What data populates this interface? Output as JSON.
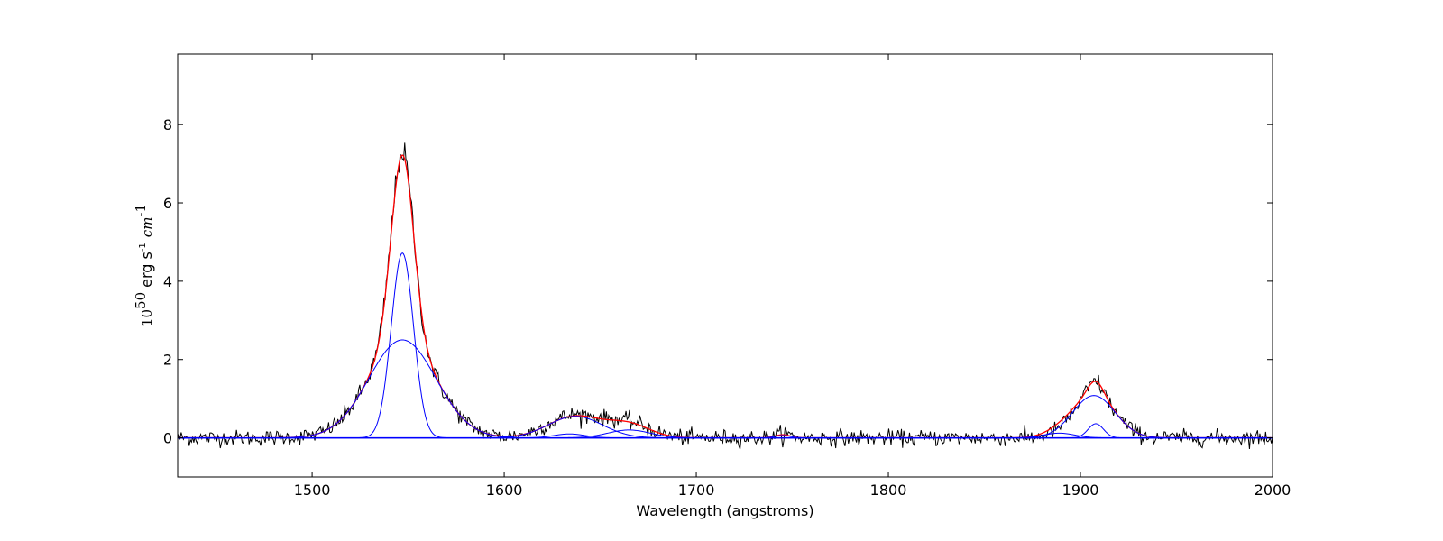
{
  "chart_data": {
    "type": "line",
    "title": "",
    "xlabel": "Wavelength (angstroms)",
    "ylabel": {
      "base": "10",
      "exponent": "50",
      "unit": "erg s",
      "unit_exponent": "-1",
      "unit2": "cm",
      "unit2_exponent": "-1"
    },
    "xlim": [
      1430,
      2000
    ],
    "ylim": [
      -1,
      9.8
    ],
    "xticks": [
      1500,
      1600,
      1700,
      1800,
      1900,
      2000
    ],
    "yticks": [
      0,
      2,
      4,
      6,
      8
    ],
    "grid": false,
    "legend": "none",
    "series": [
      {
        "role": "observed spectrum",
        "color": "#000000",
        "width": 1,
        "continuum": 0,
        "x_range": [
          1430,
          2000
        ],
        "step": 0.6,
        "noise": 0.1,
        "components": [
          {
            "center": 1547,
            "amp": 4.8,
            "sigma": 5.8
          },
          {
            "center": 1547,
            "amp": 2.5,
            "sigma": 17.5
          },
          {
            "center": 1637,
            "amp": 0.58,
            "sigma": 14
          },
          {
            "center": 1665,
            "amp": 0.35,
            "sigma": 11
          },
          {
            "center": 1907,
            "amp": 1.08,
            "sigma": 11
          },
          {
            "center": 1908,
            "amp": 0.36,
            "sigma": 4
          },
          {
            "center": 1745,
            "amp": 0.1,
            "sigma": 4
          }
        ]
      },
      {
        "role": "total fit",
        "color": "#ff0000",
        "width": 1.3,
        "continuum": 0,
        "x_range": [
          1430,
          2000
        ],
        "step": 0.5,
        "components": [
          {
            "center": 1547,
            "amp": 4.72,
            "sigma": 5.8
          },
          {
            "center": 1547,
            "amp": 2.5,
            "sigma": 17.5
          },
          {
            "center": 1637,
            "amp": 0.55,
            "sigma": 14
          },
          {
            "center": 1665,
            "amp": 0.33,
            "sigma": 11
          },
          {
            "center": 1907,
            "amp": 1.08,
            "sigma": 11
          },
          {
            "center": 1908,
            "amp": 0.36,
            "sigma": 4
          },
          {
            "center": 1889,
            "amp": 0.12,
            "sigma": 8
          },
          {
            "center": 1745,
            "amp": 0.08,
            "sigma": 4
          }
        ]
      },
      {
        "role": "component C IV narrow",
        "color": "#0000ff",
        "width": 1,
        "x_range": [
          1430,
          2000
        ],
        "step": 0.5,
        "components": [
          {
            "center": 1547,
            "amp": 4.72,
            "sigma": 5.8
          }
        ]
      },
      {
        "role": "component C IV broad",
        "color": "#0000ff",
        "width": 1,
        "x_range": [
          1430,
          2000
        ],
        "step": 0.5,
        "components": [
          {
            "center": 1547,
            "amp": 2.5,
            "sigma": 17.5
          }
        ]
      },
      {
        "role": "component 1637",
        "color": "#0000ff",
        "width": 1,
        "x_range": [
          1430,
          2000
        ],
        "step": 0.5,
        "components": [
          {
            "center": 1637,
            "amp": 0.55,
            "sigma": 14
          }
        ]
      },
      {
        "role": "component 1634 small",
        "color": "#0000ff",
        "width": 1,
        "x_range": [
          1430,
          2000
        ],
        "step": 0.5,
        "components": [
          {
            "center": 1634,
            "amp": 0.1,
            "sigma": 8
          }
        ]
      },
      {
        "role": "component 1665",
        "color": "#0000ff",
        "width": 1,
        "x_range": [
          1430,
          2000
        ],
        "step": 0.5,
        "components": [
          {
            "center": 1665,
            "amp": 0.2,
            "sigma": 11
          }
        ]
      },
      {
        "role": "component C III] broad",
        "color": "#0000ff",
        "width": 1,
        "x_range": [
          1430,
          2000
        ],
        "step": 0.5,
        "components": [
          {
            "center": 1907,
            "amp": 1.08,
            "sigma": 11
          }
        ]
      },
      {
        "role": "component C III] narrow",
        "color": "#0000ff",
        "width": 1,
        "x_range": [
          1430,
          2000
        ],
        "step": 0.5,
        "components": [
          {
            "center": 1908,
            "amp": 0.36,
            "sigma": 4
          }
        ]
      },
      {
        "role": "component 1889",
        "color": "#0000ff",
        "width": 1,
        "x_range": [
          1430,
          2000
        ],
        "step": 0.5,
        "components": [
          {
            "center": 1889,
            "amp": 0.12,
            "sigma": 8
          }
        ]
      },
      {
        "role": "component 1745",
        "color": "#0000ff",
        "width": 1,
        "x_range": [
          1430,
          2000
        ],
        "step": 0.5,
        "components": [
          {
            "center": 1745,
            "amp": 0.06,
            "sigma": 4
          }
        ]
      }
    ],
    "baseline": {
      "y": 0,
      "color": "#0000ff"
    }
  }
}
